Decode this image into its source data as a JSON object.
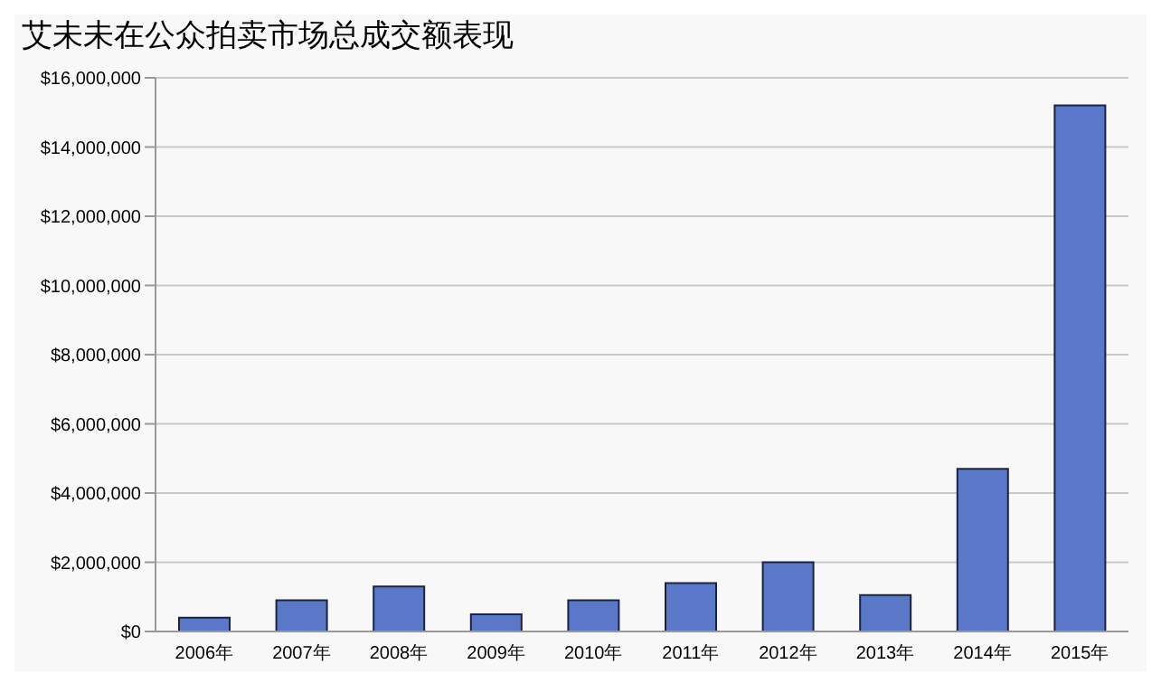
{
  "chart_data": {
    "type": "bar",
    "title": "艾未未在公众拍卖市场总成交额表现",
    "categories": [
      "2006年",
      "2007年",
      "2008年",
      "2009年",
      "2010年",
      "2011年",
      "2012年",
      "2013年",
      "2014年",
      "2015年"
    ],
    "values": [
      400000,
      900000,
      1300000,
      500000,
      900000,
      1400000,
      2000000,
      1050000,
      4700000,
      15200000
    ],
    "color": "#5b78c8",
    "ylim": [
      0,
      16000000
    ],
    "yticks": [
      {
        "value": 0,
        "label": "$0"
      },
      {
        "value": 2000000,
        "label": "$2,000,000"
      },
      {
        "value": 4000000,
        "label": "$4,000,000"
      },
      {
        "value": 6000000,
        "label": "$6,000,000"
      },
      {
        "value": 8000000,
        "label": "$8,000,000"
      },
      {
        "value": 10000000,
        "label": "$10,000,000"
      },
      {
        "value": 12000000,
        "label": "$12,000,000"
      },
      {
        "value": 14000000,
        "label": "$14,000,000"
      },
      {
        "value": 16000000,
        "label": "$16,000,000"
      }
    ],
    "grid": "y"
  }
}
